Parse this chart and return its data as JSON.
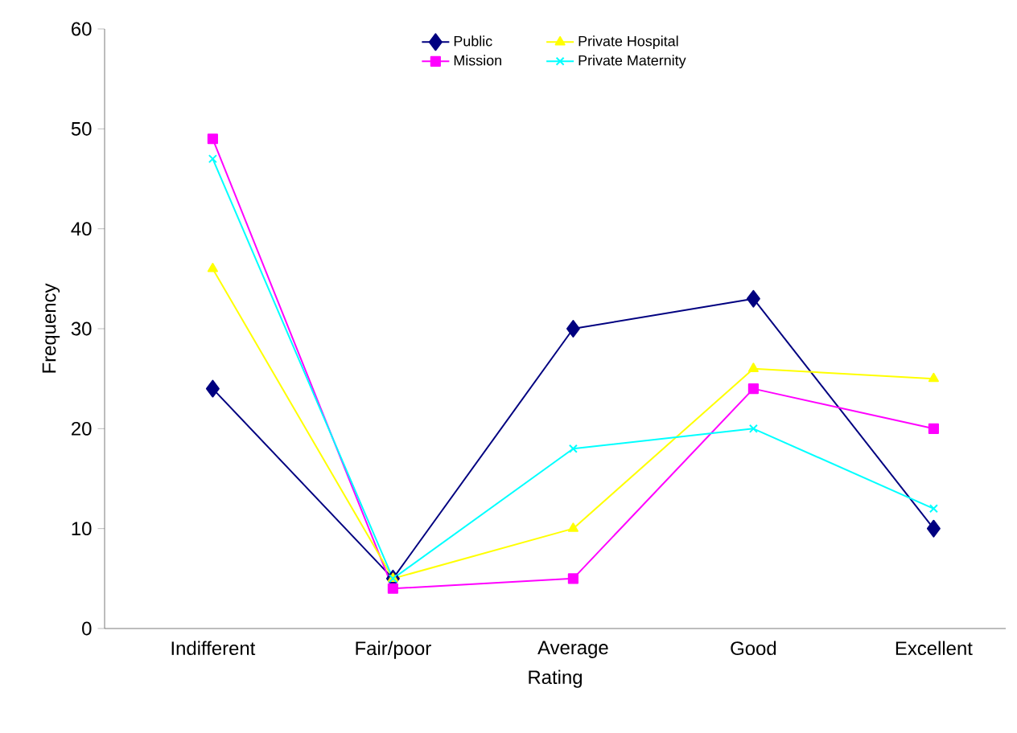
{
  "chart_data": {
    "type": "line",
    "xlabel": "Rating",
    "ylabel": "Frequency",
    "categories": [
      "Indifferent",
      "Fair/poor",
      "Average",
      "Good",
      "Excellent"
    ],
    "ylim": [
      0,
      60
    ],
    "yticks": [
      0,
      10,
      20,
      30,
      40,
      50,
      60
    ],
    "grid": false,
    "legend": "top",
    "line_style": "solid",
    "series": [
      {
        "name": "Public",
        "color": "#000080",
        "marker": "diamond",
        "values": [
          24,
          5,
          30,
          33,
          10
        ]
      },
      {
        "name": "Mission",
        "color": "#ff00ff",
        "marker": "square",
        "values": [
          49,
          4,
          5,
          24,
          20
        ]
      },
      {
        "name": "Private Hospital",
        "color": "#ffff00",
        "marker": "triangle",
        "values": [
          36,
          5,
          10,
          26,
          25
        ]
      },
      {
        "name": "Private Maternity",
        "color": "#00ffff",
        "marker": "cross",
        "values": [
          47,
          5,
          18,
          20,
          12
        ]
      }
    ]
  }
}
